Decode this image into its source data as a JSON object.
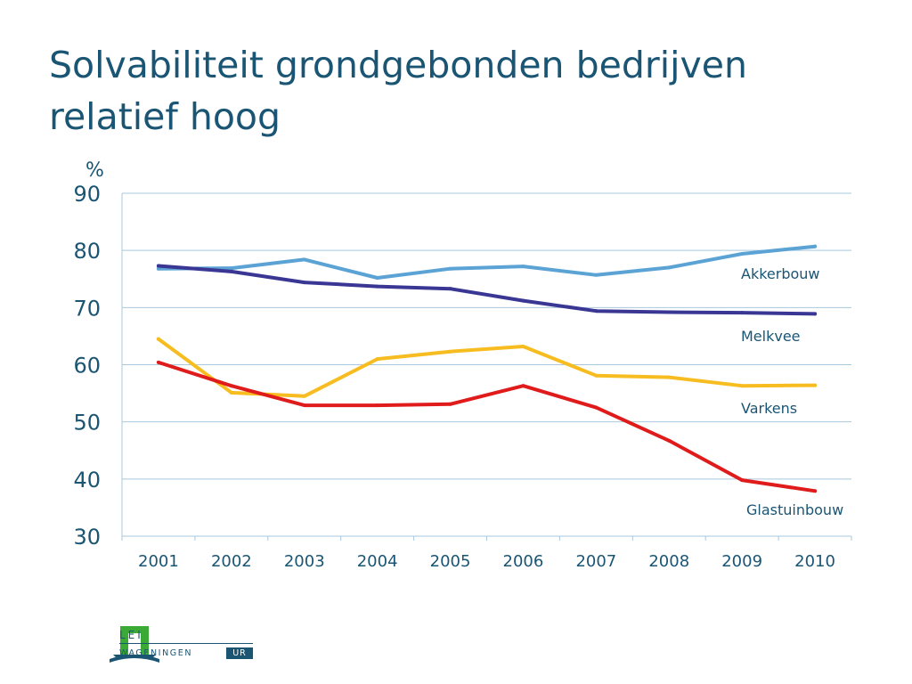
{
  "slide": {
    "title": "Solvabiliteit grondgebonden bedrijven relatief hoog"
  },
  "logo": {
    "lei": "LEI",
    "wageningen": "WAGENINGEN",
    "ur": "UR"
  },
  "chart_data": {
    "type": "line",
    "ylabel": "%",
    "ylim": [
      30,
      90
    ],
    "yticks": [
      30,
      40,
      50,
      60,
      70,
      80,
      90
    ],
    "grid": true,
    "categories": [
      "2001",
      "2002",
      "2003",
      "2004",
      "2005",
      "2006",
      "2007",
      "2008",
      "2009",
      "2010"
    ],
    "series": [
      {
        "name": "Akkerbouw",
        "color": "#5ba3d4",
        "values": [
          76.8,
          76.9,
          78.4,
          75.2,
          76.8,
          77.2,
          75.7,
          77.0,
          79.4,
          80.7
        ]
      },
      {
        "name": "Melkvee",
        "color": "#3a3694",
        "values": [
          77.3,
          76.3,
          74.4,
          73.7,
          73.3,
          71.2,
          69.4,
          69.2,
          69.1,
          68.9
        ]
      },
      {
        "name": "Varkens",
        "color": "#f7bc1f",
        "values": [
          64.5,
          55.1,
          54.5,
          61.0,
          62.3,
          63.2,
          58.1,
          57.8,
          56.3,
          56.4
        ]
      },
      {
        "name": "Glastuinbouw",
        "color": "#e01b1b",
        "values": [
          60.4,
          56.3,
          52.9,
          52.9,
          53.1,
          56.3,
          52.5,
          46.7,
          39.8,
          37.9
        ]
      }
    ]
  }
}
